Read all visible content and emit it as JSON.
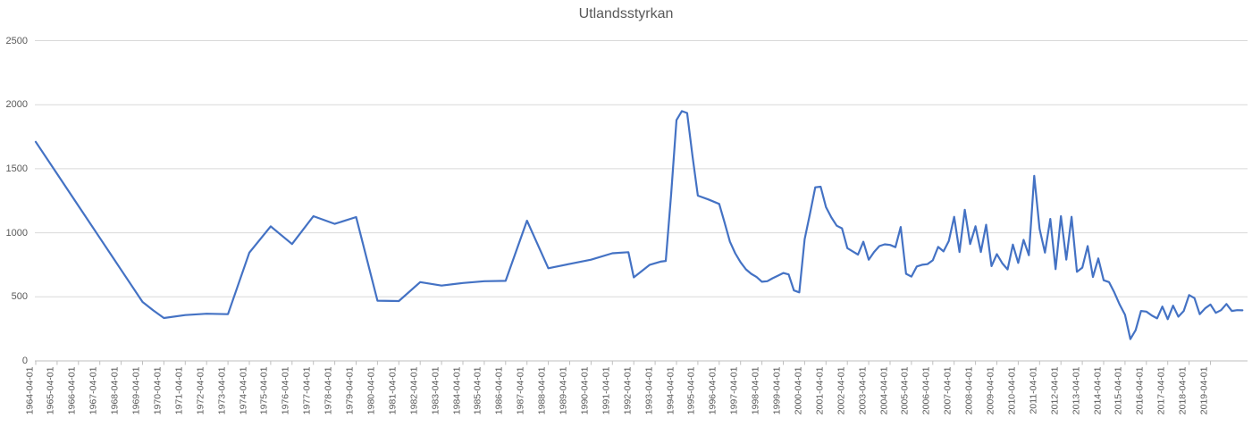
{
  "chart_title": "Utlandsstyrkan",
  "colors": {
    "line": "#4472C4",
    "gridline": "#D9D9D9",
    "axis": "#BFBFBF",
    "text": "#595959",
    "background": "#FFFFFF"
  },
  "chart_data": {
    "type": "line",
    "title": "Utlandsstyrkan",
    "xlabel": "",
    "ylabel": "",
    "ylim": [
      0,
      2500
    ],
    "grid": "horizontal",
    "legend": "none",
    "markers": "none",
    "y_tick_labels": [
      "0",
      "500",
      "1000",
      "1500",
      "2000",
      "2500"
    ],
    "y_ticks": [
      0,
      500,
      1000,
      1500,
      2000,
      2500
    ],
    "x_tick_labels": [
      "1964-04-01",
      "1965-04-01",
      "1966-04-01",
      "1967-04-01",
      "1968-04-01",
      "1969-04-01",
      "1970-04-01",
      "1971-04-01",
      "1972-04-01",
      "1973-04-01",
      "1974-04-01",
      "1975-04-01",
      "1976-04-01",
      "1977-04-01",
      "1978-04-01",
      "1979-04-01",
      "1980-04-01",
      "1981-04-01",
      "1982-04-01",
      "1983-04-01",
      "1984-04-01",
      "1985-04-01",
      "1986-04-01",
      "1987-04-01",
      "1988-04-01",
      "1989-04-01",
      "1990-04-01",
      "1991-04-01",
      "1992-04-01",
      "1993-04-01",
      "1994-04-01",
      "1995-04-01",
      "1996-04-01",
      "1997-04-01",
      "1998-04-01",
      "1999-04-01",
      "2000-04-01",
      "2001-04-01",
      "2002-04-01",
      "2003-04-01",
      "2004-04-01",
      "2005-04-01",
      "2006-04-01",
      "2007-04-01",
      "2008-04-01",
      "2009-04-01",
      "2010-04-01",
      "2011-04-01",
      "2012-04-01",
      "2013-04-01",
      "2014-04-01",
      "2015-04-01",
      "2016-04-01",
      "2017-04-01",
      "2018-04-01",
      "2019-04-01"
    ],
    "points": [
      [
        "1964-04-01",
        1710
      ],
      [
        "1965-04-01",
        1460
      ],
      [
        "1966-04-01",
        1210
      ],
      [
        "1967-04-01",
        960
      ],
      [
        "1968-04-01",
        710
      ],
      [
        "1969-04-01",
        460
      ],
      [
        "1969-10-01",
        395
      ],
      [
        "1970-04-01",
        335
      ],
      [
        "1971-04-01",
        358
      ],
      [
        "1972-04-01",
        368
      ],
      [
        "1973-04-01",
        365
      ],
      [
        "1974-04-01",
        845
      ],
      [
        "1975-04-01",
        1050
      ],
      [
        "1976-04-01",
        912
      ],
      [
        "1977-04-01",
        1130
      ],
      [
        "1978-04-01",
        1070
      ],
      [
        "1979-04-01",
        1123
      ],
      [
        "1980-04-01",
        470
      ],
      [
        "1981-04-01",
        467
      ],
      [
        "1982-04-01",
        615
      ],
      [
        "1983-04-01",
        588
      ],
      [
        "1984-04-01",
        608
      ],
      [
        "1985-04-01",
        622
      ],
      [
        "1986-04-01",
        625
      ],
      [
        "1987-04-01",
        1095
      ],
      [
        "1988-04-01",
        723
      ],
      [
        "1989-04-01",
        757
      ],
      [
        "1990-04-01",
        790
      ],
      [
        "1991-04-01",
        840
      ],
      [
        "1992-01-01",
        849
      ],
      [
        "1992-04-01",
        652
      ],
      [
        "1993-01-01",
        750
      ],
      [
        "1993-07-01",
        775
      ],
      [
        "1993-10-01",
        780
      ],
      [
        "1994-01-01",
        1300
      ],
      [
        "1994-04-01",
        1880
      ],
      [
        "1994-07-01",
        1950
      ],
      [
        "1994-10-01",
        1935
      ],
      [
        "1995-01-01",
        1600
      ],
      [
        "1995-04-01",
        1290
      ],
      [
        "1995-10-01",
        1260
      ],
      [
        "1996-04-01",
        1225
      ],
      [
        "1996-07-01",
        1080
      ],
      [
        "1996-10-01",
        930
      ],
      [
        "1997-01-01",
        840
      ],
      [
        "1997-04-01",
        770
      ],
      [
        "1997-07-01",
        715
      ],
      [
        "1997-10-01",
        680
      ],
      [
        "1998-01-01",
        655
      ],
      [
        "1998-04-01",
        618
      ],
      [
        "1998-07-01",
        622
      ],
      [
        "1998-10-01",
        645
      ],
      [
        "1999-01-01",
        665
      ],
      [
        "1999-04-01",
        686
      ],
      [
        "1999-07-01",
        675
      ],
      [
        "1999-10-01",
        550
      ],
      [
        "2000-01-01",
        535
      ],
      [
        "2000-04-01",
        950
      ],
      [
        "2000-07-01",
        1150
      ],
      [
        "2000-10-01",
        1355
      ],
      [
        "2001-01-01",
        1360
      ],
      [
        "2001-04-01",
        1200
      ],
      [
        "2001-07-01",
        1120
      ],
      [
        "2001-10-01",
        1055
      ],
      [
        "2002-01-01",
        1035
      ],
      [
        "2002-04-01",
        880
      ],
      [
        "2002-07-01",
        855
      ],
      [
        "2002-10-01",
        830
      ],
      [
        "2003-01-01",
        930
      ],
      [
        "2003-04-01",
        790
      ],
      [
        "2003-07-01",
        850
      ],
      [
        "2003-10-01",
        896
      ],
      [
        "2004-01-01",
        910
      ],
      [
        "2004-04-01",
        905
      ],
      [
        "2004-07-01",
        888
      ],
      [
        "2004-10-01",
        1045
      ],
      [
        "2005-01-01",
        680
      ],
      [
        "2005-04-01",
        658
      ],
      [
        "2005-07-01",
        737
      ],
      [
        "2005-10-01",
        750
      ],
      [
        "2006-01-01",
        755
      ],
      [
        "2006-04-01",
        785
      ],
      [
        "2006-07-01",
        890
      ],
      [
        "2006-10-01",
        855
      ],
      [
        "2007-01-01",
        935
      ],
      [
        "2007-04-01",
        1125
      ],
      [
        "2007-07-01",
        850
      ],
      [
        "2007-10-01",
        1180
      ],
      [
        "2008-01-01",
        912
      ],
      [
        "2008-04-01",
        1051
      ],
      [
        "2008-07-01",
        850
      ],
      [
        "2008-10-01",
        1063
      ],
      [
        "2009-01-01",
        740
      ],
      [
        "2009-04-01",
        833
      ],
      [
        "2009-07-01",
        763
      ],
      [
        "2009-10-01",
        714
      ],
      [
        "2010-01-01",
        908
      ],
      [
        "2010-04-01",
        765
      ],
      [
        "2010-07-01",
        945
      ],
      [
        "2010-10-01",
        825
      ],
      [
        "2011-01-01",
        1444
      ],
      [
        "2011-04-01",
        1030
      ],
      [
        "2011-07-01",
        845
      ],
      [
        "2011-10-01",
        1108
      ],
      [
        "2012-01-01",
        716
      ],
      [
        "2012-04-01",
        1130
      ],
      [
        "2012-07-01",
        791
      ],
      [
        "2012-10-01",
        1125
      ],
      [
        "2013-01-01",
        695
      ],
      [
        "2013-04-01",
        728
      ],
      [
        "2013-07-01",
        896
      ],
      [
        "2013-10-01",
        655
      ],
      [
        "2014-01-01",
        800
      ],
      [
        "2014-04-01",
        630
      ],
      [
        "2014-07-01",
        615
      ],
      [
        "2014-10-01",
        535
      ],
      [
        "2015-01-01",
        440
      ],
      [
        "2015-04-01",
        360
      ],
      [
        "2015-07-01",
        170
      ],
      [
        "2015-10-01",
        240
      ],
      [
        "2016-01-01",
        390
      ],
      [
        "2016-04-01",
        385
      ],
      [
        "2016-07-01",
        355
      ],
      [
        "2016-10-01",
        332
      ],
      [
        "2017-01-01",
        424
      ],
      [
        "2017-04-01",
        326
      ],
      [
        "2017-07-01",
        431
      ],
      [
        "2017-10-01",
        345
      ],
      [
        "2018-01-01",
        390
      ],
      [
        "2018-04-01",
        514
      ],
      [
        "2018-07-01",
        490
      ],
      [
        "2018-10-01",
        365
      ],
      [
        "2019-01-01",
        410
      ],
      [
        "2019-04-01",
        440
      ],
      [
        "2019-07-01",
        375
      ],
      [
        "2019-10-01",
        396
      ],
      [
        "2020-01-01",
        444
      ],
      [
        "2020-04-01",
        390
      ],
      [
        "2020-07-01",
        396
      ],
      [
        "2020-10-01",
        395
      ]
    ]
  }
}
